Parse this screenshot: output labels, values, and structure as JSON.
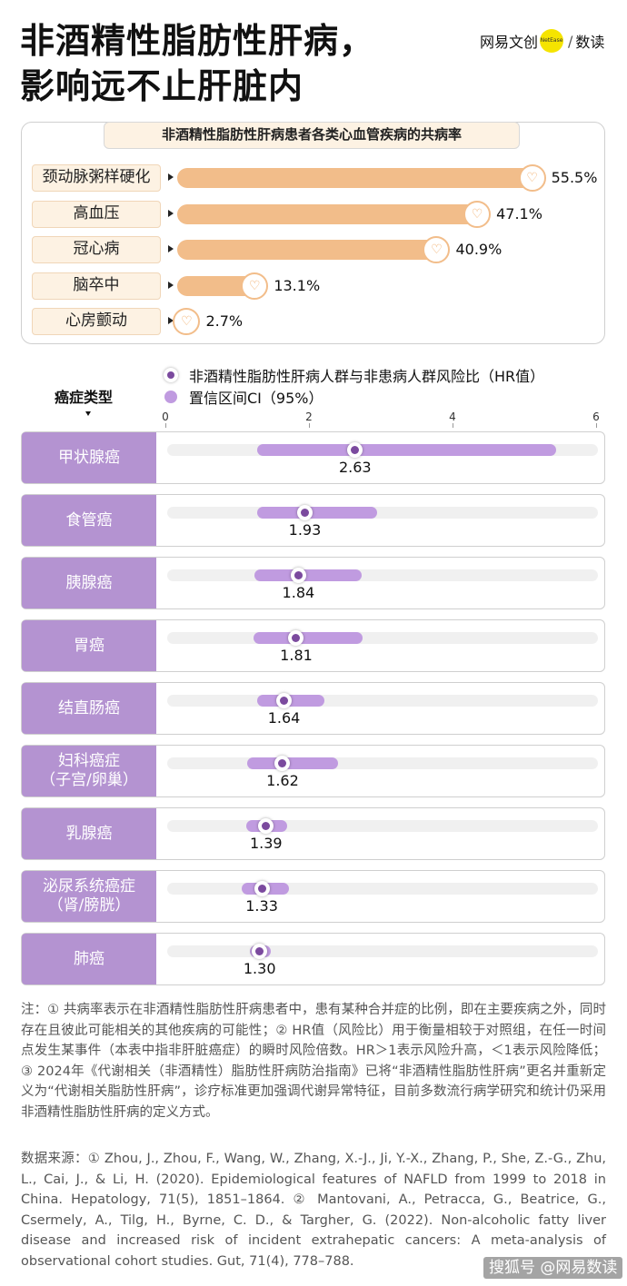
{
  "header": {
    "title_line1": "非酒精性脂肪性肝病，",
    "title_line2": "影响远不止肝脏内",
    "brand_left": "网易文创",
    "brand_dot": "NetEase",
    "brand_sep": "/",
    "brand_right": "数读"
  },
  "legend": {
    "hr_label": "非酒精性脂肪性肝病人群与非患病人群风险比（HR值）",
    "ci_label": "置信区间CI（95%）",
    "category_title": "癌症类型"
  },
  "chart_data": [
    {
      "type": "bar",
      "title": "非酒精性脂肪性肝病患者各类心血管疾病的共病率",
      "categories": [
        "颈动脉粥样硬化",
        "高血压",
        "冠心病",
        "脑卒中",
        "心房颤动"
      ],
      "values": [
        55.5,
        47.1,
        40.9,
        13.1,
        2.7
      ],
      "value_labels": [
        "55.5%",
        "47.1%",
        "40.9%",
        "13.1%",
        "2.7%"
      ],
      "unit": "%",
      "xlim": [
        0,
        60
      ],
      "bar_color": "#f2bd8a",
      "label_bg": "#fdf2e3"
    },
    {
      "type": "forest",
      "categories": [
        "甲状腺癌",
        "食管癌",
        "胰腺癌",
        "胃癌",
        "结直肠癌",
        "妇科癌症\n（子宫/卵巢）",
        "乳腺癌",
        "泌尿系统癌症\n（肾/膀胱）",
        "肺癌"
      ],
      "hr": [
        2.63,
        1.93,
        1.84,
        1.81,
        1.64,
        1.62,
        1.39,
        1.33,
        1.3
      ],
      "hr_labels": [
        "2.63",
        "1.93",
        "1.84",
        "1.81",
        "1.64",
        "1.62",
        "1.39",
        "1.33",
        "1.30"
      ],
      "ci_low": [
        1.27,
        1.27,
        1.23,
        1.21,
        1.26,
        1.13,
        1.11,
        1.05,
        1.16
      ],
      "ci_high": [
        5.43,
        2.94,
        2.72,
        2.73,
        2.2,
        2.39,
        1.68,
        1.71,
        1.45
      ],
      "xlim": [
        0,
        6
      ],
      "xticks": [
        "0",
        "2",
        "4",
        "6"
      ],
      "hr_color": "#7b4a9e",
      "ci_color": "#c09be0",
      "label_bg": "#b493d1",
      "track_color": "#f0f0f0"
    }
  ],
  "notes": {
    "note": "注：① 共病率表示在非酒精性脂肪性肝病患者中，患有某种合并症的比例，即在主要疾病之外，同时存在且彼此可能相关的其他疾病的可能性；② HR值（风险比）用于衡量相较于对照组，在任一时间点发生某事件（本表中指非肝脏癌症）的瞬时风险倍数。HR＞1表示风险升高，＜1表示风险降低；③ 2024年《代谢相关（非酒精性）脂肪性肝病防治指南》已将“非酒精性脂肪性肝病”更名并重新定义为“代谢相关脂肪性肝病”，诊疗标准更加强调代谢异常特征，目前多数流行病学研究和统计仍采用非酒精性脂肪性肝病的定义方式。",
    "source": "数据来源：① Zhou, J., Zhou, F., Wang, W., Zhang, X.-J., Ji, Y.-X., Zhang, P., She, Z.-G., Zhu, L., Cai, J., & Li, H. (2020). Epidemiological features of NAFLD from 1999 to 2018 in China. Hepatology, 71(5), 1851–1864. ② Mantovani, A., Petracca, G., Beatrice, G., Csermely, A., Tilg, H., Byrne, C. D., & Targher, G. (2022). Non-alcoholic fatty liver disease and increased risk of incident extrahepatic cancers: A meta-analysis of observational cohort studies. Gut, 71(4), 778–788."
  },
  "watermark": "搜狐号 @网易数读"
}
